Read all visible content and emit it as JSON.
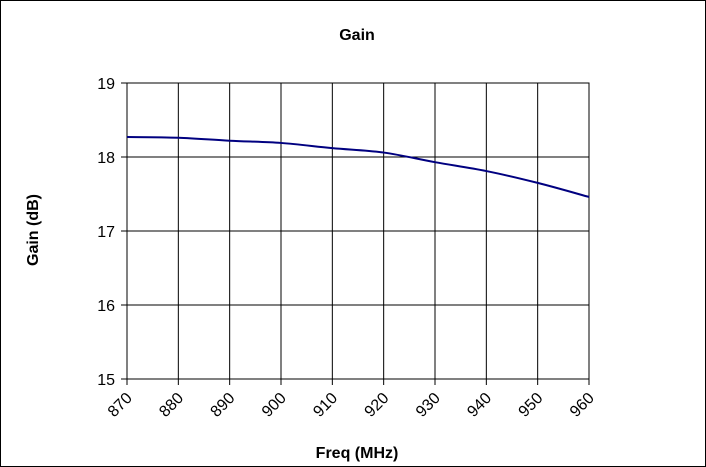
{
  "chart_data": {
    "type": "line",
    "title": "Gain",
    "xlabel": "Freq (MHz)",
    "ylabel": "Gain (dB)",
    "xlim": [
      870,
      960
    ],
    "ylim": [
      15,
      19
    ],
    "x_ticks": [
      870,
      880,
      890,
      900,
      910,
      920,
      930,
      940,
      950,
      960
    ],
    "y_ticks": [
      15,
      16,
      17,
      18,
      19
    ],
    "grid": true,
    "legend": "none",
    "series": [
      {
        "color": "#000080",
        "x": [
          870,
          880,
          890,
          900,
          910,
          920,
          930,
          940,
          950,
          960
        ],
        "values": [
          18.27,
          18.26,
          18.22,
          18.19,
          18.12,
          18.06,
          17.93,
          17.81,
          17.65,
          17.46
        ]
      }
    ]
  }
}
